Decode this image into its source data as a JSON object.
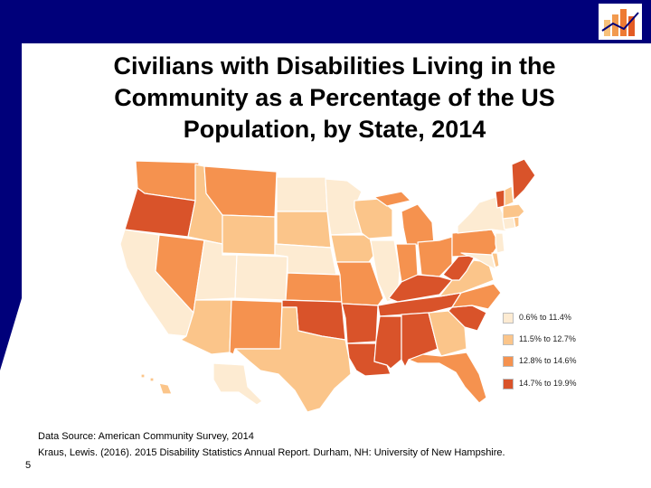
{
  "slide": {
    "title_lines": [
      "Civilians with Disabilities Living in the",
      "Community as a Percentage of the US",
      "Population, by State, 2014"
    ],
    "source_lines": [
      "Data Source: American Community Survey, 2014",
      "Kraus, Lewis. (2016). 2015 Disability Statistics Annual Report. Durham, NH: University of New Hampshire."
    ],
    "page_number": "5"
  },
  "colors": {
    "band": "#00007a",
    "logo_bars": [
      "#f7c07a",
      "#f29a4e",
      "#ee7a33",
      "#e35b24"
    ],
    "stroke": "#ffffff"
  },
  "legend": [
    {
      "label": "0.6% to 11.4%",
      "color": "#fdebd2"
    },
    {
      "label": "11.5% to 12.7%",
      "color": "#fbc58a"
    },
    {
      "label": "12.8% to 14.6%",
      "color": "#f5924f"
    },
    {
      "label": "14.7% to 19.9%",
      "color": "#d9532a"
    }
  ],
  "states": [
    {
      "name": "Washington",
      "category": 2
    },
    {
      "name": "Oregon",
      "category": 3
    },
    {
      "name": "California",
      "category": 0
    },
    {
      "name": "Nevada",
      "category": 2
    },
    {
      "name": "Idaho",
      "category": 1
    },
    {
      "name": "Montana",
      "category": 2
    },
    {
      "name": "Wyoming",
      "category": 1
    },
    {
      "name": "Utah",
      "category": 0
    },
    {
      "name": "Colorado",
      "category": 0
    },
    {
      "name": "Arizona",
      "category": 1
    },
    {
      "name": "New Mexico",
      "category": 2
    },
    {
      "name": "North Dakota",
      "category": 0
    },
    {
      "name": "South Dakota",
      "category": 1
    },
    {
      "name": "Nebraska",
      "category": 0
    },
    {
      "name": "Kansas",
      "category": 2
    },
    {
      "name": "Oklahoma",
      "category": 3
    },
    {
      "name": "Texas",
      "category": 1
    },
    {
      "name": "Minnesota",
      "category": 0
    },
    {
      "name": "Iowa",
      "category": 1
    },
    {
      "name": "Missouri",
      "category": 2
    },
    {
      "name": "Arkansas",
      "category": 3
    },
    {
      "name": "Louisiana",
      "category": 3
    },
    {
      "name": "Wisconsin",
      "category": 1
    },
    {
      "name": "Illinois",
      "category": 0
    },
    {
      "name": "Michigan",
      "category": 2
    },
    {
      "name": "Indiana",
      "category": 2
    },
    {
      "name": "Ohio",
      "category": 2
    },
    {
      "name": "Kentucky",
      "category": 3
    },
    {
      "name": "Tennessee",
      "category": 3
    },
    {
      "name": "Mississippi",
      "category": 3
    },
    {
      "name": "Alabama",
      "category": 3
    },
    {
      "name": "Georgia",
      "category": 1
    },
    {
      "name": "Florida",
      "category": 2
    },
    {
      "name": "South Carolina",
      "category": 3
    },
    {
      "name": "North Carolina",
      "category": 2
    },
    {
      "name": "Virginia",
      "category": 1
    },
    {
      "name": "West Virginia",
      "category": 3
    },
    {
      "name": "Pennsylvania",
      "category": 2
    },
    {
      "name": "New York",
      "category": 0
    },
    {
      "name": "Maryland",
      "category": 0
    },
    {
      "name": "Delaware",
      "category": 1
    },
    {
      "name": "New Jersey",
      "category": 0
    },
    {
      "name": "Connecticut",
      "category": 0
    },
    {
      "name": "Rhode Island",
      "category": 1
    },
    {
      "name": "Massachusetts",
      "category": 1
    },
    {
      "name": "Vermont",
      "category": 3
    },
    {
      "name": "New Hampshire",
      "category": 1
    },
    {
      "name": "Maine",
      "category": 3
    },
    {
      "name": "Alaska",
      "category": 0
    },
    {
      "name": "Hawaii",
      "category": 1
    }
  ]
}
